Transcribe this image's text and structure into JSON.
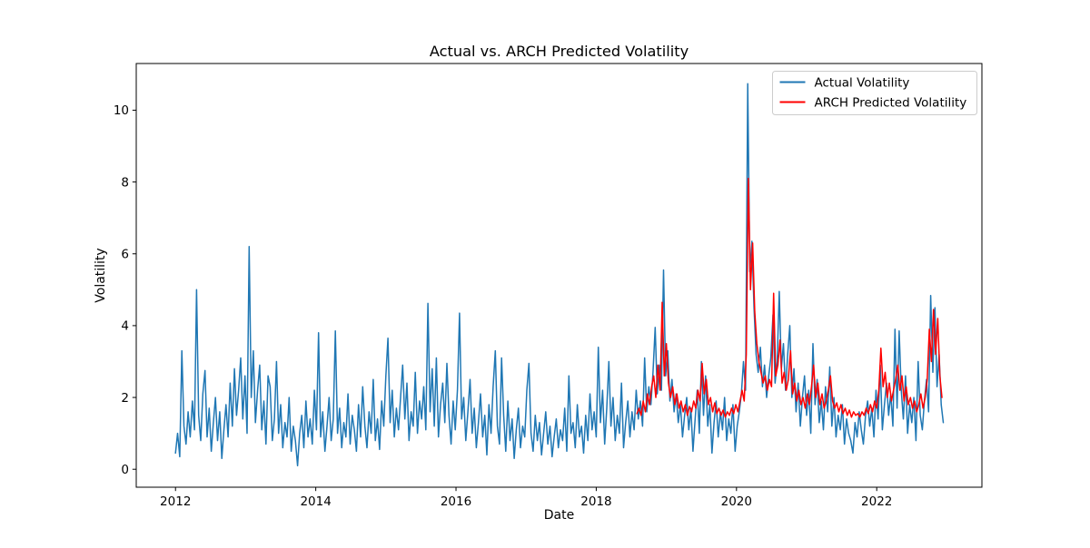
{
  "figure": {
    "title": "Actual vs. ARCH Predicted Volatility",
    "background_color": "#ffffff",
    "spine_color": "#000000",
    "legend_edge_color": "#cccccc",
    "legend_face_color": "#ffffff"
  },
  "chart_data": {
    "type": "line",
    "title": "Actual vs. ARCH Predicted Volatility",
    "xlabel": "Date",
    "ylabel": "Volatility",
    "xlim": [
      2011.44,
      2023.5
    ],
    "ylim": [
      -0.5,
      11.3
    ],
    "xticks": [
      2012,
      2014,
      2016,
      2018,
      2020,
      2022
    ],
    "yticks": [
      0,
      2,
      4,
      6,
      8,
      10
    ],
    "grid": false,
    "legend_position": "upper right",
    "x_units": "year (decimal)",
    "series": [
      {
        "name": "Actual Volatility",
        "color": "#1f77b4",
        "linewidth": 1.5,
        "x0": 2012.0,
        "dx": 0.03,
        "y": [
          0.45,
          1.0,
          0.35,
          3.3,
          1.2,
          0.7,
          1.6,
          0.9,
          1.9,
          1.1,
          5.0,
          1.5,
          0.8,
          2.1,
          2.75,
          0.9,
          1.7,
          0.5,
          1.3,
          2.0,
          0.8,
          1.6,
          0.3,
          1.1,
          1.8,
          0.9,
          2.4,
          1.2,
          2.8,
          1.5,
          2.2,
          3.1,
          1.4,
          2.6,
          1.0,
          6.2,
          2.0,
          3.3,
          1.3,
          2.2,
          2.9,
          1.1,
          1.9,
          0.7,
          2.6,
          2.3,
          0.8,
          1.4,
          3.0,
          1.0,
          1.8,
          0.6,
          1.3,
          0.9,
          2.0,
          0.5,
          1.2,
          0.8,
          0.1,
          1.0,
          1.5,
          0.6,
          1.9,
          0.9,
          1.4,
          0.7,
          2.2,
          1.1,
          3.8,
          0.9,
          1.6,
          0.5,
          1.2,
          2.0,
          0.8,
          1.4,
          3.85,
          1.0,
          1.7,
          0.6,
          1.3,
          0.9,
          2.1,
          0.7,
          1.5,
          1.1,
          0.5,
          1.8,
          0.9,
          2.3,
          1.2,
          0.6,
          1.6,
          1.0,
          2.5,
          0.8,
          1.4,
          0.55,
          1.9,
          1.2,
          2.6,
          3.65,
          1.3,
          2.2,
          0.9,
          1.7,
          1.1,
          2.0,
          2.9,
          1.4,
          2.4,
          0.8,
          1.6,
          1.2,
          2.7,
          1.0,
          1.9,
          1.4,
          2.3,
          1.1,
          4.62,
          1.6,
          2.8,
          1.2,
          3.1,
          0.9,
          1.8,
          2.4,
          1.3,
          2.95,
          1.5,
          0.7,
          1.9,
          1.1,
          2.2,
          4.35,
          1.4,
          2.0,
          0.8,
          1.6,
          2.5,
          1.0,
          1.7,
          0.6,
          1.3,
          2.1,
          0.9,
          1.5,
          0.4,
          1.8,
          1.0,
          2.3,
          3.3,
          1.2,
          0.7,
          3.1,
          1.5,
          0.5,
          1.9,
          0.8,
          1.4,
          0.3,
          1.1,
          1.7,
          0.6,
          1.2,
          0.9,
          2.2,
          2.95,
          1.0,
          0.5,
          1.5,
          0.8,
          1.3,
          0.4,
          1.0,
          1.6,
          0.7,
          1.2,
          0.35,
          0.9,
          1.4,
          0.6,
          1.1,
          0.8,
          1.7,
          0.5,
          2.6,
          1.0,
          1.3,
          0.6,
          1.8,
          0.9,
          1.2,
          0.45,
          1.5,
          0.8,
          2.1,
          1.1,
          1.6,
          0.9,
          3.4,
          1.3,
          2.2,
          0.7,
          1.7,
          3.0,
          1.2,
          2.0,
          0.8,
          1.5,
          1.0,
          2.4,
          0.6,
          1.3,
          1.9,
          0.9,
          1.6,
          1.1,
          2.2,
          1.4,
          1.9,
          1.2,
          3.1,
          1.6,
          2.3,
          1.8,
          2.7,
          3.95,
          2.1,
          2.9,
          2.2,
          5.55,
          2.6,
          3.3,
          1.9,
          2.5,
          1.6,
          2.1,
          1.3,
          1.8,
          0.9,
          1.5,
          2.0,
          1.1,
          1.7,
          0.5,
          1.4,
          2.2,
          1.0,
          3.0,
          1.5,
          2.6,
          1.2,
          1.8,
          0.45,
          1.3,
          1.9,
          0.9,
          1.6,
          1.1,
          2.0,
          0.8,
          1.4,
          1.0,
          1.8,
          0.5,
          1.2,
          1.6,
          2.1,
          3.0,
          2.2,
          10.74,
          5.5,
          6.35,
          4.5,
          3.2,
          2.7,
          3.4,
          2.3,
          2.9,
          2.0,
          2.6,
          3.1,
          4.3,
          2.4,
          3.0,
          4.95,
          2.8,
          3.5,
          2.2,
          3.2,
          4.0,
          2.0,
          2.8,
          1.6,
          2.4,
          1.2,
          2.0,
          2.6,
          1.5,
          2.2,
          1.0,
          3.5,
          1.8,
          2.5,
          1.3,
          1.9,
          1.1,
          2.3,
          1.6,
          2.85,
          1.2,
          2.0,
          0.9,
          1.5,
          1.1,
          1.8,
          0.7,
          1.4,
          1.0,
          0.8,
          0.45,
          1.3,
          0.9,
          1.6,
          1.1,
          0.7,
          1.5,
          1.9,
          1.2,
          1.7,
          0.9,
          2.2,
          1.4,
          2.9,
          1.1,
          1.8,
          2.4,
          1.5,
          2.1,
          1.2,
          3.9,
          1.7,
          3.85,
          2.2,
          1.4,
          2.6,
          1.0,
          1.8,
          1.3,
          2.0,
          0.8,
          3.0,
          1.5,
          1.1,
          1.9,
          2.5,
          1.6,
          4.84,
          2.7,
          4.5,
          2.3,
          3.2,
          1.8,
          1.3
        ]
      },
      {
        "name": "ARCH Predicted Volatility",
        "color": "#ff0000",
        "linewidth": 1.5,
        "x0": 2018.58,
        "dx": 0.03,
        "y": [
          1.55,
          1.7,
          1.5,
          1.9,
          1.6,
          2.1,
          1.8,
          2.3,
          2.6,
          2.0,
          2.9,
          2.2,
          4.65,
          2.6,
          3.5,
          2.4,
          2.0,
          2.3,
          1.8,
          2.1,
          1.7,
          1.9,
          1.6,
          1.8,
          1.5,
          1.75,
          1.6,
          1.9,
          1.7,
          2.2,
          1.9,
          2.95,
          2.1,
          2.5,
          1.8,
          2.0,
          1.6,
          1.85,
          1.55,
          1.7,
          1.5,
          1.65,
          1.45,
          1.6,
          1.5,
          1.7,
          1.55,
          1.8,
          1.6,
          1.9,
          2.2,
          1.9,
          3.2,
          8.1,
          5.0,
          6.3,
          4.4,
          3.5,
          3.0,
          2.7,
          2.4,
          2.6,
          2.2,
          2.5,
          2.3,
          4.9,
          2.6,
          2.9,
          3.6,
          2.4,
          2.7,
          2.2,
          2.5,
          3.3,
          2.1,
          2.4,
          1.9,
          2.2,
          1.8,
          2.0,
          1.7,
          2.1,
          1.8,
          2.3,
          2.9,
          2.0,
          2.4,
          1.8,
          2.1,
          1.7,
          1.9,
          2.2,
          2.6,
          1.9,
          1.7,
          1.85,
          1.6,
          1.8,
          1.55,
          1.7,
          1.5,
          1.65,
          1.45,
          1.6,
          1.5,
          1.55,
          1.45,
          1.6,
          1.5,
          1.7,
          1.55,
          1.8,
          1.6,
          1.9,
          1.7,
          2.2,
          3.37,
          2.3,
          2.7,
          2.0,
          2.4,
          1.9,
          2.2,
          2.5,
          2.9,
          2.2,
          2.6,
          1.9,
          2.3,
          1.8,
          2.0,
          1.7,
          1.9,
          1.6,
          1.8,
          2.1,
          1.7,
          2.0,
          2.5,
          3.9,
          3.0,
          4.45,
          3.2,
          4.2,
          2.6,
          2.0
        ]
      }
    ]
  }
}
